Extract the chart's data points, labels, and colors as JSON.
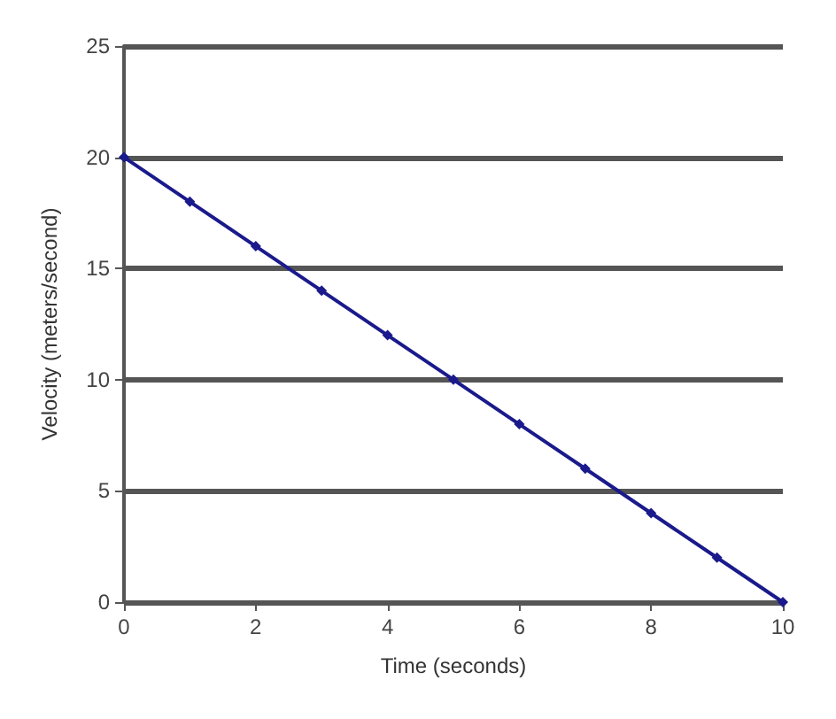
{
  "chart_data": {
    "type": "line",
    "xlabel": "Time (seconds)",
    "ylabel": "Velocity (meters/second)",
    "x": [
      0,
      1,
      2,
      3,
      4,
      5,
      6,
      7,
      8,
      9,
      10
    ],
    "series": [
      {
        "color": "#1a1a8c",
        "values": [
          20,
          18,
          16,
          14,
          12,
          10,
          8,
          6,
          4,
          2,
          0
        ]
      }
    ],
    "xlim": [
      0,
      10
    ],
    "xticks": [
      0,
      2,
      4,
      6,
      8,
      10
    ],
    "ylim": [
      0,
      25
    ],
    "yticks": [
      0,
      5,
      10,
      15,
      20,
      25
    ],
    "grid": "y",
    "marker": "diamond",
    "line_style": "solid"
  }
}
